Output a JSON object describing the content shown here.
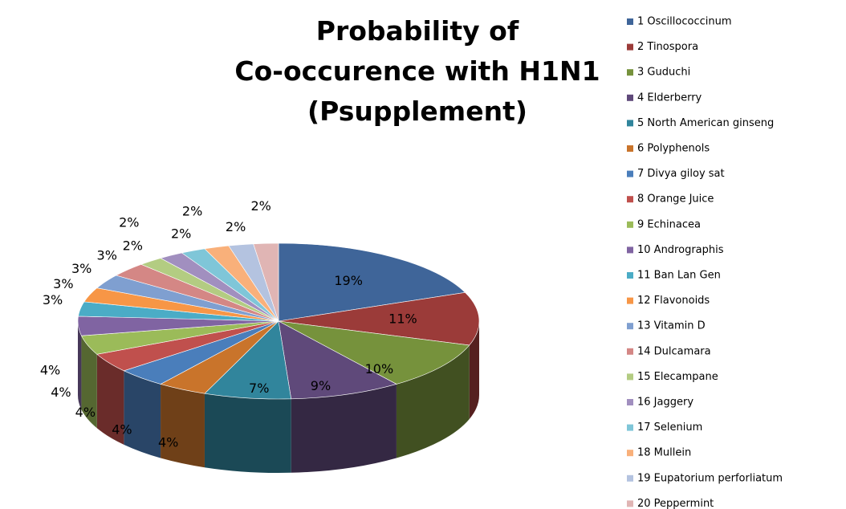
{
  "chart_data": {
    "type": "pie3d",
    "title": "Probability of\nCo-occurence with H1N1\n(Psupplement)",
    "categories": [
      "1 Oscillococcinum",
      "2 Tinospora",
      "3 Guduchi",
      "4 Elderberry",
      "5 North American ginseng",
      "6 Polyphenols",
      "7 Divya giloy sat",
      "8 Orange Juice",
      "9 Echinacea",
      "10 Andrographis",
      "11 Ban Lan Gen",
      "12 Flavonoids",
      "13 Vitamin D",
      "14 Dulcamara",
      "15 Elecampane",
      "16 Jaggery",
      "17 Selenium",
      "18 Mullein",
      "19 Eupatorium perforliatum",
      "20 Peppermint"
    ],
    "values": [
      19,
      11,
      10,
      9,
      7,
      4,
      4,
      4,
      4,
      4,
      3,
      3,
      3,
      3,
      2,
      2,
      2,
      2,
      2,
      2
    ],
    "value_labels": [
      "19%",
      "11%",
      "10%",
      "9%",
      "7%",
      "4%",
      "4%",
      "4%",
      "4%",
      "4%",
      "3%",
      "3%",
      "3%",
      "3%",
      "2%",
      "2%",
      "2%",
      "2%",
      "2%",
      "2%"
    ],
    "colors": [
      "#3f6599",
      "#9b3b39",
      "#76923c",
      "#5f497a",
      "#31859c",
      "#c9742b",
      "#4a7ebb",
      "#c0504d",
      "#9bbb59",
      "#8064a2",
      "#4bacc6",
      "#f79646",
      "#7f9fd0",
      "#d48785",
      "#b3cc82",
      "#a18fbf",
      "#7fc6d8",
      "#f9b07a",
      "#b4c3e0",
      "#e0b5b4"
    ],
    "legend": "right"
  }
}
